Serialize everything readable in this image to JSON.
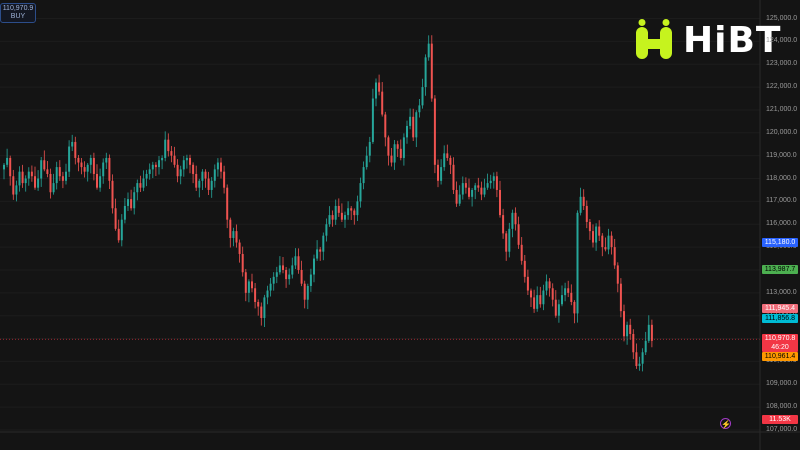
{
  "order_box": {
    "price": "110,970.9",
    "side": "BUY"
  },
  "logo": {
    "text": "HiBT"
  },
  "price_axis": {
    "ticks": [
      "125,000.0",
      "124,000.0",
      "123,000.0",
      "122,000.0",
      "121,000.0",
      "120,000.0",
      "119,000.0",
      "118,000.0",
      "117,000.0",
      "116,000.0",
      "115,000.0",
      "114,000.0",
      "113,000.0",
      "112,000.0",
      "111,000.0",
      "110,000.0",
      "109,000.0",
      "108,000.0",
      "107,000.0"
    ],
    "range": [
      107000,
      125000
    ]
  },
  "price_labels": [
    {
      "value": "115,180.0",
      "price": 115180,
      "bg": "#2962ff",
      "fg": "#ffffff"
    },
    {
      "value": "113,987.7",
      "price": 113988,
      "bg": "#4caf50",
      "fg": "#000000"
    },
    {
      "value": "111,945.4",
      "price": 111945,
      "bg": "#f06d7a",
      "fg": "#ffffff"
    },
    {
      "value": "111,856.8",
      "price": 111857,
      "bg": "#00bcd4",
      "fg": "#000000"
    },
    {
      "value": "110,961.4",
      "price": 110961,
      "bg": "#ff9800",
      "fg": "#000000"
    }
  ],
  "current_price": {
    "value": "110,970.8",
    "countdown": "46:20",
    "price": 110971,
    "color": "#f23645"
  },
  "volume_label": {
    "value": "11.53K",
    "bg": "#f23645",
    "fg": "#ffffff"
  },
  "colors": {
    "up": "#26a69a",
    "down": "#ef5350",
    "background": "#141414",
    "logo_green": "#c6f31e"
  },
  "icons": {
    "lightning": "lightning-icon"
  },
  "chart_data": {
    "type": "candlestick",
    "y_range": [
      107000,
      125000
    ],
    "closes": [
      118600,
      118900,
      118100,
      117300,
      117700,
      118300,
      117800,
      118000,
      118300,
      118100,
      117600,
      118000,
      118800,
      118400,
      118200,
      117400,
      117800,
      118500,
      118100,
      117900,
      118300,
      119400,
      119600,
      118900,
      118700,
      118500,
      118300,
      118600,
      118900,
      118200,
      117600,
      118100,
      118700,
      118900,
      117900,
      116700,
      115800,
      115300,
      116200,
      116800,
      117100,
      116700,
      117400,
      117800,
      117600,
      118000,
      118200,
      118400,
      118600,
      118500,
      118800,
      118900,
      119700,
      119200,
      119000,
      118600,
      118100,
      118400,
      118800,
      118900,
      118600,
      118200,
      117600,
      117900,
      118300,
      118000,
      117500,
      117900,
      118400,
      118700,
      118300,
      117600,
      116200,
      115400,
      115700,
      115200,
      114700,
      113900,
      113000,
      113500,
      113200,
      112600,
      112400,
      111900,
      112800,
      113100,
      113400,
      113700,
      113900,
      114200,
      114000,
      113600,
      113800,
      114200,
      114600,
      114000,
      113400,
      112700,
      113300,
      113800,
      114500,
      114900,
      114800,
      115500,
      116000,
      116400,
      116200,
      116800,
      116500,
      116200,
      116400,
      116700,
      116600,
      116400,
      117000,
      117800,
      118500,
      119000,
      119600,
      121500,
      122200,
      121800,
      120800,
      119800,
      119000,
      118700,
      119500,
      119300,
      118900,
      119800,
      120300,
      120700,
      119800,
      120900,
      121200,
      122000,
      123300,
      123900,
      121500,
      118600,
      117900,
      118500,
      119100,
      118900,
      118600,
      117500,
      116900,
      117300,
      117800,
      117600,
      117200,
      117500,
      117700,
      117600,
      117300,
      117600,
      117800,
      117900,
      118100,
      117500,
      116400,
      115600,
      114800,
      115800,
      116500,
      116000,
      115100,
      114400,
      113700,
      113100,
      112800,
      112300,
      112900,
      112500,
      113100,
      113500,
      113200,
      112700,
      112000,
      112500,
      112900,
      113200,
      113000,
      112600,
      112100,
      116500,
      117200,
      116800,
      116100,
      115700,
      115200,
      115900,
      115500,
      115000,
      114900,
      115500,
      115000,
      114200,
      113400,
      112200,
      111100,
      111600,
      111200,
      110400,
      109800,
      109900,
      110400,
      110900,
      111600,
      110900
    ]
  }
}
